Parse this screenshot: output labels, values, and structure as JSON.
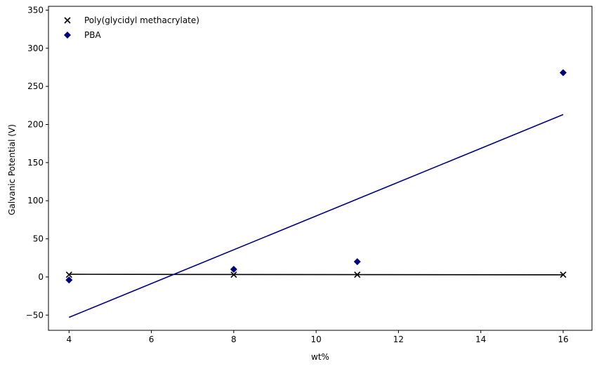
{
  "chart_data": {
    "type": "scatter",
    "xlabel": "wt%",
    "ylabel": "Galvanic Potential (V)",
    "xlim": [
      3.5,
      16.7
    ],
    "ylim": [
      -70,
      355
    ],
    "xticks": [
      4,
      6,
      8,
      10,
      12,
      14,
      16
    ],
    "yticks": [
      -50,
      0,
      50,
      100,
      150,
      200,
      250,
      300,
      350
    ],
    "legend_position": "top-left",
    "grid": false,
    "series": [
      {
        "name": "Poly(glycidyl methacrylate)",
        "marker": "x",
        "color": "#000000",
        "x": [
          4,
          8,
          11,
          16
        ],
        "y": [
          3,
          3,
          3,
          3
        ],
        "fit_line": {
          "x": [
            4,
            16
          ],
          "y": [
            3.5,
            2.8
          ]
        }
      },
      {
        "name": "PBA",
        "marker": "diamond",
        "color": "#00007f",
        "x": [
          4,
          8,
          11,
          16
        ],
        "y": [
          -4,
          10,
          20,
          268
        ],
        "fit_line": {
          "x": [
            4,
            16
          ],
          "y": [
            -53,
            213
          ]
        }
      }
    ]
  }
}
